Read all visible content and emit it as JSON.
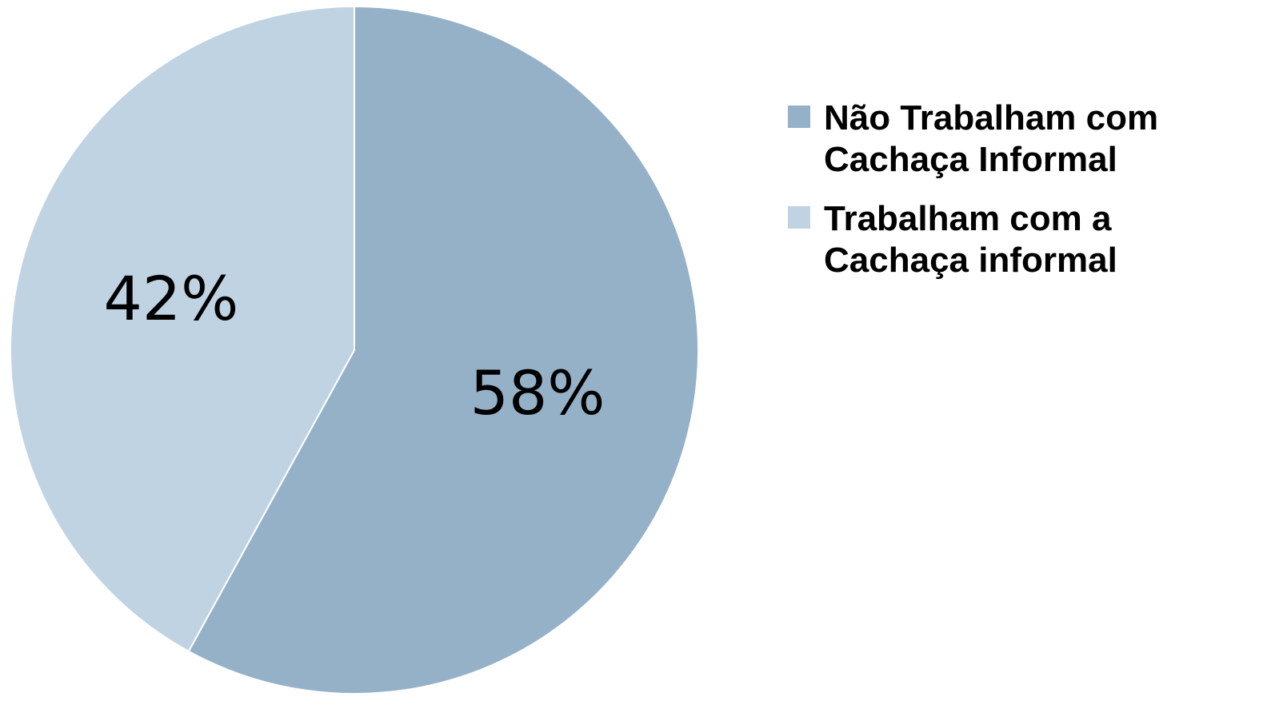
{
  "chart_data": {
    "type": "pie",
    "categories": [
      "Não Trabalham com Cachaça Informal",
      "Trabalham com a Cachaça informal"
    ],
    "values": [
      58,
      42
    ],
    "value_labels": [
      "58%",
      "42%"
    ],
    "colors": [
      "#95b1c8",
      "#c0d3e2"
    ],
    "legend": "right"
  }
}
